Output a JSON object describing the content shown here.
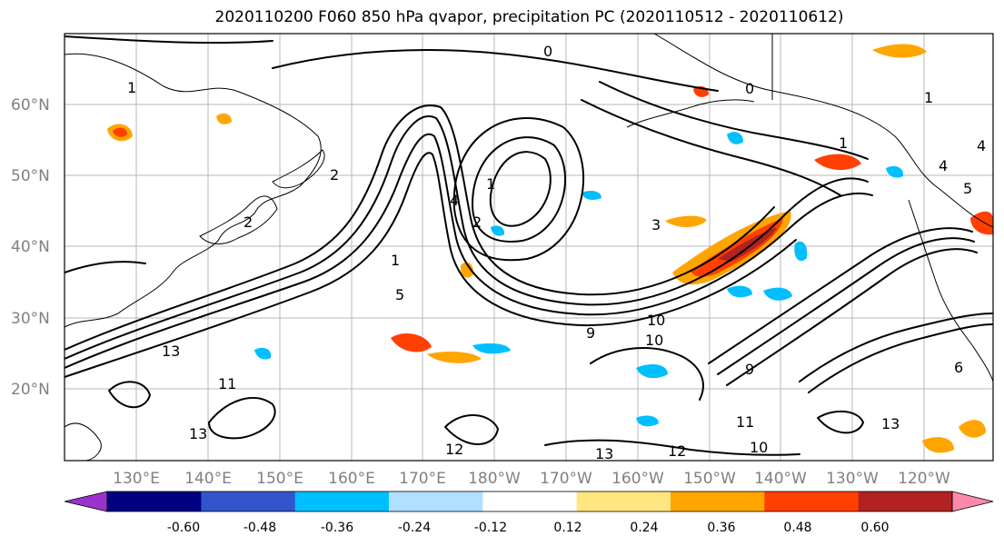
{
  "title": "2020110200 F060 850 hPa qvapor, precipitation PC (2020110512 - 2020110612)",
  "lat_labels": [
    "60°N",
    "50°N",
    "40°N",
    "30°N",
    "20°N"
  ],
  "lon_labels": [
    "130°E",
    "140°E",
    "150°E",
    "160°E",
    "170°E",
    "180°W",
    "170°W",
    "160°W",
    "150°W",
    "140°W",
    "130°W",
    "120°W"
  ],
  "colorbar": {
    "colors": [
      "#9933cc",
      "#000080",
      "#3355cc",
      "#00bfff",
      "#b0e0ff",
      "#ffffff",
      "#ffe680",
      "#ffa500",
      "#ff4000",
      "#b22222",
      "#ff88aa"
    ],
    "tick_labels": [
      "-0.60",
      "-0.48",
      "-0.36",
      "-0.24",
      "-0.12",
      "0.12",
      "0.24",
      "0.36",
      "0.48",
      "0.60"
    ]
  },
  "contour_labels": [
    "1",
    "2",
    "0",
    "1",
    "2",
    "4",
    "5",
    "3",
    "1",
    "0",
    "1",
    "4",
    "5",
    "10",
    "9",
    "10",
    "13",
    "11",
    "13",
    "12",
    "13",
    "12",
    "13",
    "10",
    "11",
    "9",
    "6",
    "4",
    "2",
    "1"
  ]
}
